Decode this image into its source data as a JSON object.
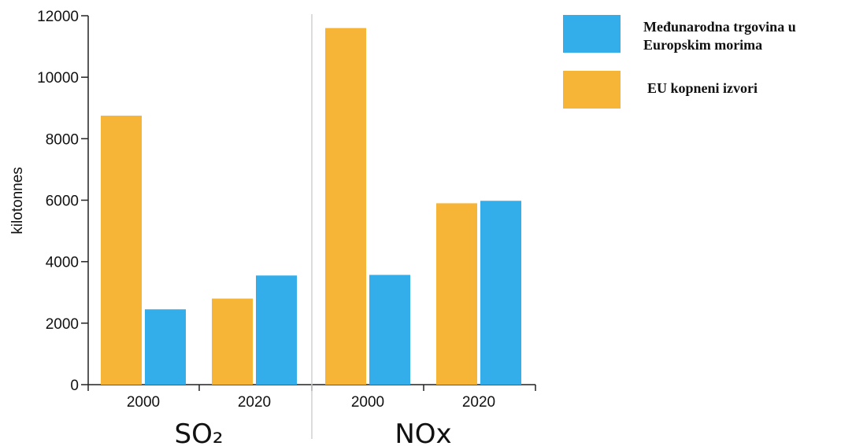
{
  "chart_data": {
    "type": "bar",
    "ylabel": "kilotonnes",
    "ylim": [
      0,
      12000
    ],
    "y_ticks": [
      0,
      2000,
      4000,
      6000,
      8000,
      10000,
      12000
    ],
    "grid": false,
    "legend_placement": "top-right",
    "groups": [
      {
        "label": "SO₂",
        "categories": [
          "2000",
          "2020"
        ]
      },
      {
        "label": "NOx",
        "categories": [
          "2000",
          "2020"
        ]
      }
    ],
    "series": [
      {
        "name": "EU kopneni izvori",
        "color": "#F7B538",
        "values": [
          8750,
          2800,
          11600,
          5900
        ]
      },
      {
        "name": "Međunarodna trgovina u Europskim morima",
        "legend_lines": [
          "Međunarodna trgovina u",
          "Europskim morima"
        ],
        "color": "#33AEEA",
        "values": [
          2450,
          3550,
          3570,
          5980
        ]
      }
    ]
  }
}
